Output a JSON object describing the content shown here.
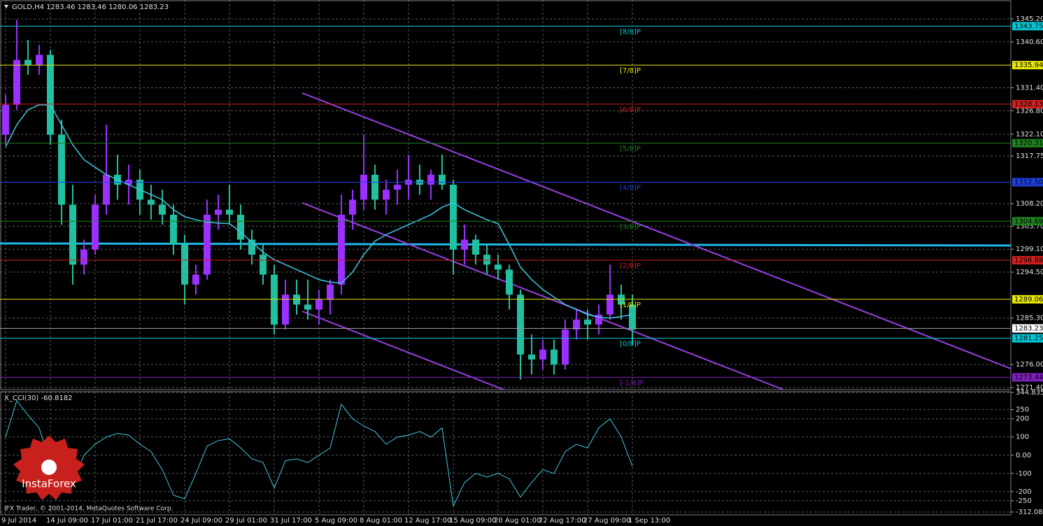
{
  "chart_data": [
    {
      "type": "candlestick",
      "title": "GOLD,H4 1283.46 1283.46 1280.06 1283.23",
      "categories": [
        "9 Jul 2014",
        null,
        null,
        null,
        "14 Jul 09:00",
        null,
        null,
        null,
        "17 Jul 01:00",
        null,
        null,
        null,
        "21 Jul 17:00",
        null,
        null,
        null,
        "24 Jul 09:00",
        null,
        null,
        null,
        "29 Jul 01:00",
        null,
        null,
        null,
        "31 Jul 17:00",
        null,
        null,
        null,
        "5 Aug 09:00",
        null,
        null,
        null,
        "8 Aug 01:00",
        null,
        null,
        null,
        "12 Aug 17:00",
        null,
        null,
        null,
        "15 Aug 09:00",
        null,
        null,
        null,
        "20 Aug 01:00",
        null,
        null,
        null,
        "22 Aug 17:00",
        null,
        null,
        null,
        "27 Aug 09:00",
        null,
        null,
        null,
        "1 Sep 13:00"
      ],
      "open": [
        1322,
        1328,
        1337,
        1336,
        1338,
        1322,
        1308,
        1296,
        1299,
        1308,
        1314,
        1312,
        1313,
        1309,
        1308,
        1306,
        1300,
        1292,
        1294,
        1306,
        1307,
        1306,
        1301,
        1298,
        1294,
        1284,
        1290,
        1288,
        1287,
        1289,
        1292,
        1306,
        1309,
        1314,
        1309,
        1311,
        1312,
        1313,
        1312,
        1314,
        1312,
        1299,
        1301,
        1298,
        1296,
        1295,
        1290,
        1278,
        1277,
        1279,
        1276,
        1283,
        1285,
        1284,
        1286,
        1290,
        1288
      ],
      "high": [
        1330,
        1345,
        1341,
        1340,
        1339,
        1325,
        1312,
        1301,
        1310,
        1324,
        1318,
        1316,
        1315,
        1312,
        1311,
        1308,
        1302,
        1296,
        1309,
        1310,
        1312,
        1308,
        1303,
        1300,
        1296,
        1293,
        1293,
        1293,
        1291,
        1293,
        1310,
        1311,
        1322,
        1316,
        1313,
        1315,
        1318,
        1316,
        1315,
        1318,
        1313,
        1304,
        1302,
        1300,
        1298,
        1296,
        1291,
        1282,
        1281,
        1281,
        1285,
        1287,
        1287,
        1288,
        1296,
        1292,
        1290
      ],
      "low": [
        1320,
        1327,
        1334,
        1334,
        1320,
        1304,
        1292,
        1294,
        1298,
        1306,
        1309,
        1308,
        1306,
        1305,
        1304,
        1298,
        1288,
        1290,
        1293,
        1303,
        1304,
        1299,
        1296,
        1292,
        1282,
        1283,
        1286,
        1285,
        1284,
        1286,
        1290,
        1303,
        1307,
        1307,
        1306,
        1308,
        1309,
        1310,
        1309,
        1311,
        1294,
        1296,
        1296,
        1294,
        1293,
        1287,
        1273,
        1274,
        1275,
        1274,
        1275,
        1281,
        1281,
        1282,
        1285,
        1285,
        1280
      ],
      "close": [
        1328,
        1337,
        1336,
        1338,
        1322,
        1308,
        1296,
        1299,
        1308,
        1314,
        1312,
        1313,
        1309,
        1308,
        1306,
        1300,
        1292,
        1294,
        1306,
        1307,
        1306,
        1301,
        1298,
        1294,
        1284,
        1290,
        1288,
        1287,
        1289,
        1292,
        1306,
        1309,
        1314,
        1309,
        1311,
        1312,
        1313,
        1312,
        1314,
        1312,
        1299,
        1301,
        1298,
        1296,
        1295,
        1290,
        1278,
        1277,
        1279,
        1276,
        1283,
        1285,
        1284,
        1286,
        1290,
        1288,
        1283
      ],
      "up_color": "#9b30ff",
      "down_color": "#20c0a0",
      "ma": {
        "color": "#40c8e0",
        "values": [
          1319.6,
          1324,
          1327,
          1328,
          1328,
          1324,
          1320,
          1317,
          1315.5,
          1314,
          1313,
          1312,
          1311,
          1310,
          1309,
          1307,
          1305.6,
          1305,
          1304.5,
          1304.3,
          1304.2,
          1302.5,
          1300.5,
          1298.5,
          1297,
          1296,
          1295,
          1294,
          1293,
          1292.5,
          1292.3,
          1294.5,
          1298,
          1300.7,
          1302,
          1303,
          1304,
          1305,
          1306,
          1307.5,
          1308.4,
          1307,
          1306,
          1305,
          1304.2,
          1300,
          1295.5,
          1293,
          1291,
          1289.5,
          1288,
          1287,
          1286,
          1285.5,
          1285.3,
          1285.6,
          1286
        ]
      },
      "levels": [
        {
          "label": "[8/8]P",
          "value": 1343.75,
          "color": "#00c8d8"
        },
        {
          "label": "[7/8]P",
          "value": 1335.94,
          "color": "#e8e800"
        },
        {
          "label": "[6/8]P",
          "value": 1328.13,
          "color": "#d02020"
        },
        {
          "label": "[5/8]P",
          "value": 1320.31,
          "color": "#208020"
        },
        {
          "label": "[4/8]P",
          "value": 1312.5,
          "value_label": "1312.50",
          "color": "#2040e0"
        },
        {
          "label": "[3/8]P",
          "value": 1304.69,
          "color": "#208020"
        },
        {
          "label": "[2/8]P",
          "value": 1296.88,
          "color": "#d02020"
        },
        {
          "label": "[1/8]P",
          "value": 1289.06,
          "color": "#e8e800"
        },
        {
          "label": "[0/8]P",
          "value": 1281.25,
          "color": "#00c8d8"
        },
        {
          "label": "[-1/8]P",
          "value": 1273.44,
          "color": "#8020c0"
        }
      ],
      "current_price": 1283.23,
      "ylim": [
        1270.98,
        1348.98
      ],
      "yticks": [
        {
          "value": 1345.2,
          "label": "1345.20"
        },
        {
          "value": 1340.6,
          "label": "1340.60"
        },
        {
          "value": 1331.4,
          "label": "1331.40"
        },
        {
          "value": 1326.8,
          "label": "1326.80"
        },
        {
          "value": 1322.1,
          "label": "1322.10"
        },
        1317.75,
        {
          "value": 1308.2,
          "label": "1308.20"
        },
        {
          "value": 1303.7,
          "label": "1303.70"
        },
        {
          "value": 1299.1,
          "label": "1299.10"
        },
        {
          "value": 1294.5,
          "label": "1294.50"
        },
        {
          "value": 1285.3,
          "label": "1285.30"
        },
        {
          "value": 1276,
          "label": "1276.00"
        },
        {
          "value": 1271.4,
          "label": "1271.40"
        }
      ],
      "grid": true
    },
    {
      "type": "line",
      "title": "X_CCI(30) -60.8182",
      "color": "#40c8e0",
      "values": [
        100,
        300,
        220,
        150,
        -50,
        -150,
        -150,
        0,
        60,
        100,
        120,
        110,
        60,
        20,
        -80,
        -220,
        -240,
        -100,
        50,
        80,
        90,
        40,
        -20,
        -40,
        -180,
        -30,
        -20,
        -40,
        0,
        40,
        280,
        200,
        160,
        130,
        60,
        100,
        110,
        130,
        100,
        150,
        -280,
        -150,
        -100,
        -120,
        -100,
        -130,
        -230,
        -150,
        -80,
        -100,
        20,
        60,
        40,
        150,
        200,
        100,
        -60
      ],
      "ylim": [
        -312.0897,
        344.8358
      ],
      "yticks": [
        344.8358,
        250,
        200,
        100,
        {
          "value": 0,
          "label": "0.00"
        },
        -100,
        -200,
        -250,
        -312.0897
      ],
      "grid": true
    }
  ],
  "watermark": {
    "brand": "InstaForex",
    "copyright": "IFX Trader, © 2001-2014, MetaQuotes Software Corp."
  }
}
